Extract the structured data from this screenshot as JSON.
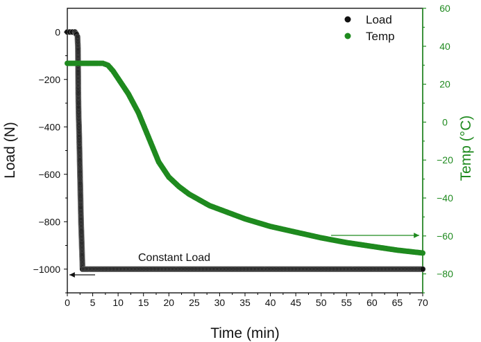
{
  "chart_data": {
    "type": "scatter",
    "xlabel": "Time (min)",
    "ylabel_left": "Load (N)",
    "ylabel_right": "Temp (°C)",
    "xlim": [
      0,
      70
    ],
    "ylim_left": [
      -1100,
      100
    ],
    "ylim_right": [
      -90,
      60
    ],
    "x_ticks": [
      "0",
      "5",
      "10",
      "15",
      "20",
      "25",
      "30",
      "35",
      "40",
      "45",
      "50",
      "55",
      "60",
      "65",
      "70"
    ],
    "y_left_ticks": [
      "0",
      "−200",
      "−400",
      "−600",
      "−800",
      "−1000"
    ],
    "y_right_ticks": [
      "60",
      "40",
      "20",
      "0",
      "−20",
      "−40",
      "−60",
      "−80"
    ],
    "legend_position": "top-right",
    "grid": false,
    "annotation": "Constant Load",
    "series": [
      {
        "name": "Load",
        "axis": "left",
        "color": "#111111",
        "x": [
          0.0,
          0.5,
          1.0,
          1.5,
          1.8,
          2.0,
          2.1,
          2.15,
          2.2,
          2.25,
          2.3,
          2.35,
          2.4,
          2.5,
          2.7,
          3.0,
          3.3,
          5,
          10,
          20,
          30,
          40,
          50,
          60,
          70
        ],
        "y": [
          0,
          0,
          0,
          0,
          -10,
          -20,
          -70,
          -240,
          -320,
          -370,
          -400,
          -450,
          -500,
          -600,
          -800,
          -1000,
          -1000,
          -1000,
          -1000,
          -1000,
          -1000,
          -1000,
          -1000,
          -1000,
          -1000
        ]
      },
      {
        "name": "Temp",
        "axis": "right",
        "color": "#1f8a1f",
        "x": [
          0,
          2,
          4,
          6,
          7,
          8,
          9,
          10,
          12,
          14,
          16,
          18,
          20,
          22,
          24,
          26,
          28,
          30,
          35,
          40,
          45,
          50,
          55,
          60,
          65,
          70
        ],
        "y": [
          31,
          31,
          31,
          31,
          31,
          30,
          27,
          23,
          15,
          5,
          -8,
          -21,
          -29,
          -34,
          -38,
          -41,
          -44,
          -46,
          -51,
          -55,
          -58,
          -61,
          -63.5,
          -65.5,
          -67.5,
          -69
        ]
      }
    ]
  }
}
